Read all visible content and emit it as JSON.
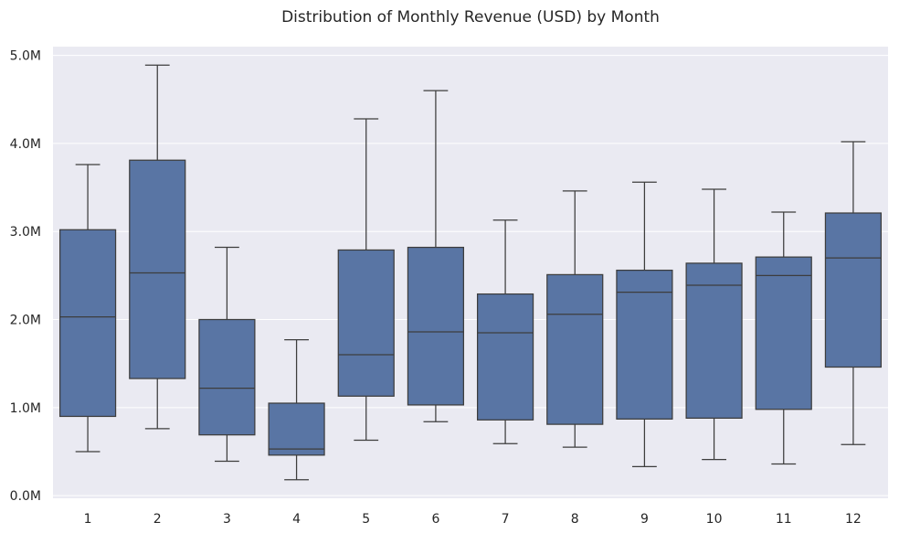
{
  "chart_data": {
    "type": "box",
    "title": "Distribution of Monthly Revenue (USD) by Month",
    "xlabel": "",
    "ylabel": "",
    "categories": [
      "1",
      "2",
      "3",
      "4",
      "5",
      "6",
      "7",
      "8",
      "9",
      "10",
      "11",
      "12"
    ],
    "y_ticks": [
      {
        "value": 0,
        "label": "0.0M"
      },
      {
        "value": 1000000,
        "label": "1.0M"
      },
      {
        "value": 2000000,
        "label": "2.0M"
      },
      {
        "value": 3000000,
        "label": "3.0M"
      },
      {
        "value": 4000000,
        "label": "4.0M"
      },
      {
        "value": 5000000,
        "label": "5.0M"
      }
    ],
    "ylim": [
      -30000,
      5100000
    ],
    "grid": true,
    "legend": "none",
    "colors": {
      "plot_bg": "#eaeaf2",
      "grid": "#ffffff",
      "box": "#5975a4",
      "line": "#3d3d3d",
      "text": "#262626"
    },
    "boxes": [
      {
        "category": "1",
        "min": 500000,
        "q1": 900000,
        "median": 2030000,
        "q3": 3020000,
        "max": 3760000
      },
      {
        "category": "2",
        "min": 760000,
        "q1": 1330000,
        "median": 2530000,
        "q3": 3810000,
        "max": 4890000
      },
      {
        "category": "3",
        "min": 390000,
        "q1": 690000,
        "median": 1220000,
        "q3": 2000000,
        "max": 2820000
      },
      {
        "category": "4",
        "min": 180000,
        "q1": 460000,
        "median": 530000,
        "q3": 1050000,
        "max": 1770000
      },
      {
        "category": "5",
        "min": 630000,
        "q1": 1130000,
        "median": 1600000,
        "q3": 2790000,
        "max": 4280000
      },
      {
        "category": "6",
        "min": 840000,
        "q1": 1030000,
        "median": 1860000,
        "q3": 2820000,
        "max": 4600000
      },
      {
        "category": "7",
        "min": 590000,
        "q1": 860000,
        "median": 1850000,
        "q3": 2290000,
        "max": 3130000
      },
      {
        "category": "8",
        "min": 550000,
        "q1": 810000,
        "median": 2060000,
        "q3": 2510000,
        "max": 3460000
      },
      {
        "category": "9",
        "min": 330000,
        "q1": 870000,
        "median": 2310000,
        "q3": 2560000,
        "max": 3560000
      },
      {
        "category": "10",
        "min": 410000,
        "q1": 880000,
        "median": 2390000,
        "q3": 2640000,
        "max": 3480000
      },
      {
        "category": "11",
        "min": 360000,
        "q1": 980000,
        "median": 2500000,
        "q3": 2710000,
        "max": 3220000
      },
      {
        "category": "12",
        "min": 580000,
        "q1": 1460000,
        "median": 2700000,
        "q3": 3210000,
        "max": 4020000
      }
    ]
  }
}
